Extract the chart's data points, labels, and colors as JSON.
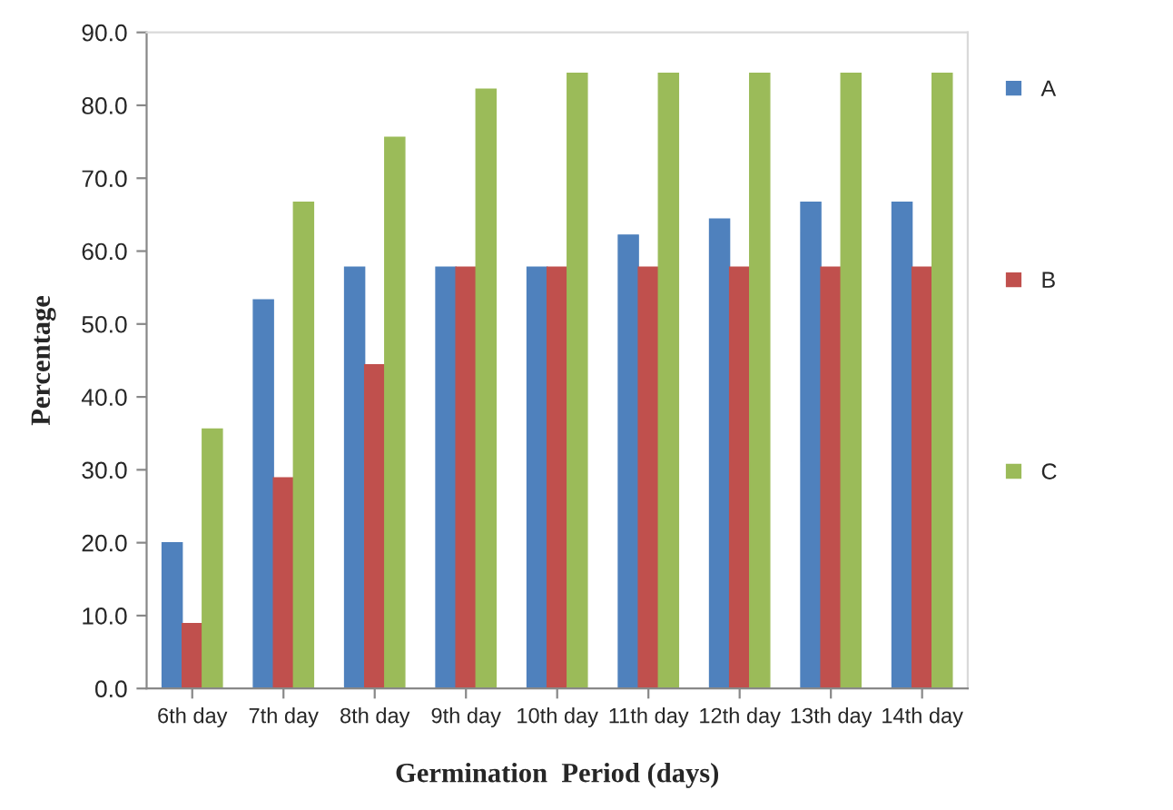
{
  "chart_data": {
    "type": "bar",
    "xlabel": "Germination  Period (days)",
    "ylabel": "Percentage",
    "categories": [
      "6th day",
      "7th day",
      "8th day",
      "9th day",
      "10th day",
      "11th day",
      "12th day",
      "13th day",
      "14th day"
    ],
    "series": [
      {
        "name": "A",
        "color": "#4f81bd",
        "values": [
          20.0,
          53.3,
          57.8,
          57.8,
          57.8,
          62.2,
          64.4,
          66.7,
          66.7
        ]
      },
      {
        "name": "B",
        "color": "#c0504d",
        "values": [
          8.9,
          28.9,
          44.4,
          57.8,
          57.8,
          57.8,
          57.8,
          57.8,
          57.8
        ]
      },
      {
        "name": "C",
        "color": "#9bbb59",
        "values": [
          35.6,
          66.7,
          75.6,
          82.2,
          84.4,
          84.4,
          84.4,
          84.4,
          84.4
        ]
      }
    ],
    "ylim": [
      0,
      90
    ],
    "yticks": [
      {
        "value": 0,
        "label": "0.0"
      },
      {
        "value": 10,
        "label": "10.0"
      },
      {
        "value": 20,
        "label": "20.0"
      },
      {
        "value": 30,
        "label": "30.0"
      },
      {
        "value": 40,
        "label": "40.0"
      },
      {
        "value": 50,
        "label": "50.0"
      },
      {
        "value": 60,
        "label": "60.0"
      },
      {
        "value": 70,
        "label": "70.0"
      },
      {
        "value": 80,
        "label": "80.0"
      },
      {
        "value": 90,
        "label": "90.0"
      }
    ],
    "grid": false,
    "legend": "right"
  }
}
